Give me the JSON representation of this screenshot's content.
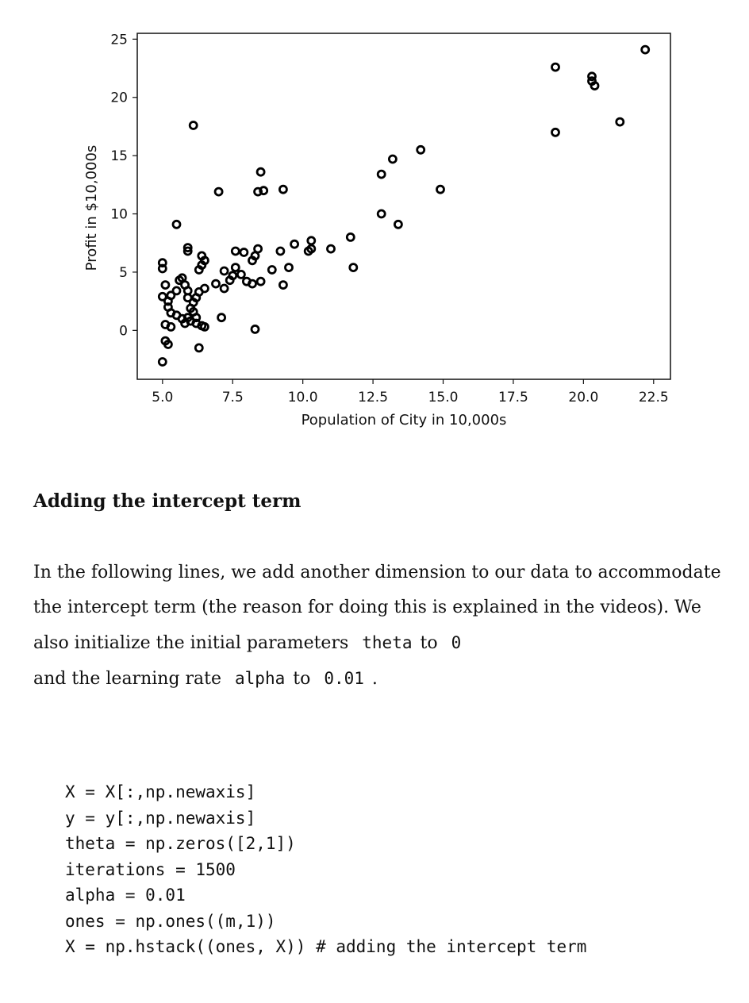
{
  "chart_data": {
    "type": "scatter",
    "xlabel": "Population of City in 10,000s",
    "ylabel": "Profit in $10,000s",
    "xlim": [
      4.1,
      23.1
    ],
    "ylim": [
      -4.2,
      25.5
    ],
    "x_ticks": [
      {
        "value": 5.0,
        "label": "5.0"
      },
      {
        "value": 7.5,
        "label": "7.5"
      },
      {
        "value": 10.0,
        "label": "10.0"
      },
      {
        "value": 12.5,
        "label": "12.5"
      },
      {
        "value": 15.0,
        "label": "15.0"
      },
      {
        "value": 17.5,
        "label": "17.5"
      },
      {
        "value": 20.0,
        "label": "20.0"
      },
      {
        "value": 22.5,
        "label": "22.5"
      }
    ],
    "y_ticks": [
      {
        "value": 0,
        "label": "0"
      },
      {
        "value": 5,
        "label": "5"
      },
      {
        "value": 10,
        "label": "10"
      },
      {
        "value": 15,
        "label": "15"
      },
      {
        "value": 20,
        "label": "20"
      },
      {
        "value": 25,
        "label": "25"
      }
    ],
    "grid": false,
    "marker": "open-circle",
    "points": [
      [
        5.0,
        -2.7
      ],
      [
        6.1,
        17.6
      ],
      [
        5.5,
        9.1
      ],
      [
        5.0,
        5.8
      ],
      [
        5.0,
        5.3
      ],
      [
        5.9,
        7.1
      ],
      [
        5.9,
        6.8
      ],
      [
        6.4,
        6.4
      ],
      [
        6.5,
        6.0
      ],
      [
        6.4,
        5.6
      ],
      [
        6.3,
        5.2
      ],
      [
        5.1,
        3.9
      ],
      [
        5.0,
        2.9
      ],
      [
        5.2,
        2.5
      ],
      [
        5.2,
        2.0
      ],
      [
        5.5,
        3.4
      ],
      [
        5.6,
        4.3
      ],
      [
        5.3,
        3.0
      ],
      [
        5.7,
        4.5
      ],
      [
        5.8,
        3.9
      ],
      [
        5.9,
        3.4
      ],
      [
        5.9,
        2.8
      ],
      [
        6.1,
        2.4
      ],
      [
        6.0,
        1.9
      ],
      [
        6.1,
        1.6
      ],
      [
        5.3,
        1.5
      ],
      [
        5.5,
        1.3
      ],
      [
        5.7,
        1.0
      ],
      [
        5.9,
        1.1
      ],
      [
        5.1,
        0.5
      ],
      [
        5.3,
        0.3
      ],
      [
        5.8,
        0.6
      ],
      [
        6.0,
        0.8
      ],
      [
        6.2,
        1.1
      ],
      [
        6.2,
        0.6
      ],
      [
        6.4,
        0.4
      ],
      [
        5.1,
        -0.9
      ],
      [
        5.2,
        -1.2
      ],
      [
        6.3,
        -1.5
      ],
      [
        6.5,
        0.3
      ],
      [
        6.5,
        3.6
      ],
      [
        6.3,
        3.3
      ],
      [
        6.2,
        2.8
      ],
      [
        6.9,
        4.0
      ],
      [
        7.0,
        11.9
      ],
      [
        7.1,
        1.1
      ],
      [
        7.2,
        3.6
      ],
      [
        7.2,
        5.1
      ],
      [
        7.4,
        4.3
      ],
      [
        7.5,
        4.7
      ],
      [
        7.6,
        5.4
      ],
      [
        7.6,
        6.8
      ],
      [
        7.9,
        6.7
      ],
      [
        7.8,
        4.8
      ],
      [
        8.0,
        4.2
      ],
      [
        8.2,
        4.0
      ],
      [
        8.2,
        6.0
      ],
      [
        8.4,
        7.0
      ],
      [
        8.3,
        6.4
      ],
      [
        8.3,
        0.1
      ],
      [
        8.5,
        4.2
      ],
      [
        8.4,
        11.9
      ],
      [
        8.6,
        12.0
      ],
      [
        8.5,
        13.6
      ],
      [
        8.9,
        5.2
      ],
      [
        9.2,
        6.8
      ],
      [
        9.3,
        12.1
      ],
      [
        9.3,
        3.9
      ],
      [
        9.5,
        5.4
      ],
      [
        9.7,
        7.4
      ],
      [
        10.2,
        6.8
      ],
      [
        10.3,
        7.7
      ],
      [
        10.3,
        7.0
      ],
      [
        11.0,
        7.0
      ],
      [
        11.7,
        8.0
      ],
      [
        11.8,
        5.4
      ],
      [
        12.8,
        13.4
      ],
      [
        12.8,
        10.0
      ],
      [
        13.2,
        14.7
      ],
      [
        13.4,
        9.1
      ],
      [
        14.2,
        15.5
      ],
      [
        14.9,
        12.1
      ],
      [
        19.0,
        22.6
      ],
      [
        19.0,
        17.0
      ],
      [
        20.3,
        21.8
      ],
      [
        20.3,
        21.4
      ],
      [
        20.4,
        21.0
      ],
      [
        21.3,
        17.9
      ],
      [
        22.2,
        24.1
      ]
    ]
  },
  "section": {
    "heading": "Adding the intercept term",
    "paragraph": {
      "t1": "In the following lines, we add another dimension to our data to accommodate the intercept term (the reason for doing this is explained in the videos). We also initialize the initial parameters",
      "c1": "theta",
      "t2": "to",
      "c2": "0",
      "t3": "and the learning rate",
      "c3": "alpha",
      "t4": "to",
      "c4": "0.01",
      "t5": "."
    },
    "code_lines": [
      "X = X[:,np.newaxis]",
      "y = y[:,np.newaxis]",
      "theta = np.zeros([2,1])",
      "iterations = 1500",
      "alpha = 0.01",
      "ones = np.ones((m,1))",
      "X = np.hstack((ones, X)) # adding the intercept term"
    ]
  }
}
